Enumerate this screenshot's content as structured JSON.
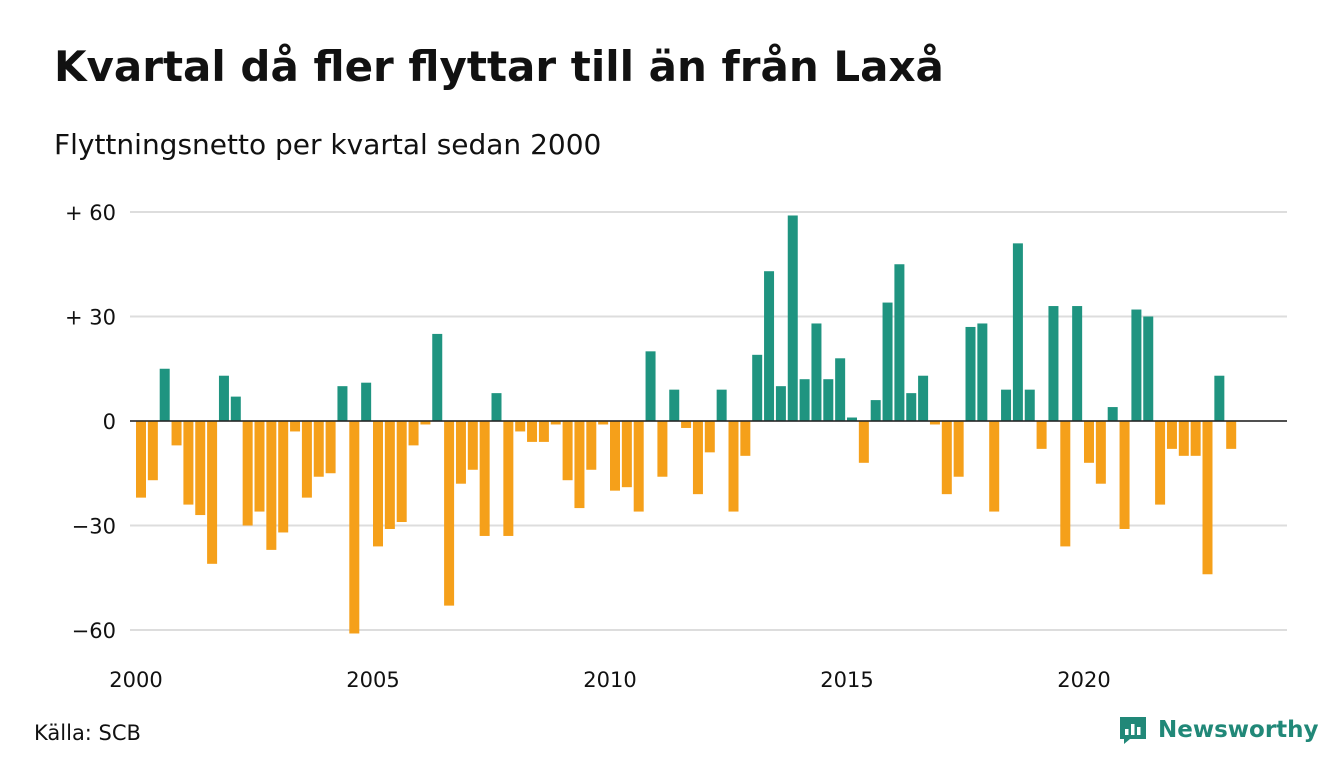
{
  "header": {
    "title": "Kvartal då fler flyttar till än från Laxå",
    "subtitle": "Flyttningsnetto per kvartal sedan 2000"
  },
  "footer": {
    "source": "Källa: SCB",
    "brand": "Newsworthy"
  },
  "colors": {
    "positive": "#1f9480",
    "negative": "#f5a01a",
    "grid": "#dddddd",
    "brand": "#218878"
  },
  "icons": {
    "brand_logo": "newsworthy-logo-icon"
  },
  "chart_data": {
    "type": "bar",
    "start": {
      "year": 2000,
      "quarter": 1
    },
    "ylim": [
      -65,
      62
    ],
    "yticks": [
      {
        "value": 60,
        "label": "+ 60"
      },
      {
        "value": 30,
        "label": "+ 30"
      },
      {
        "value": 0,
        "label": "0"
      },
      {
        "value": -30,
        "label": "−30"
      },
      {
        "value": -60,
        "label": "−60"
      }
    ],
    "xticks": [
      {
        "value": 2000,
        "label": "2000"
      },
      {
        "value": 2005,
        "label": "2005"
      },
      {
        "value": 2010,
        "label": "2010"
      },
      {
        "value": 2015,
        "label": "2015"
      },
      {
        "value": 2020,
        "label": "2020"
      }
    ],
    "grid": true,
    "values": [
      -22,
      -17,
      15,
      -7,
      -24,
      -27,
      -41,
      13,
      7,
      -30,
      -26,
      -37,
      -32,
      -3,
      -22,
      -16,
      -15,
      10,
      -61,
      11,
      -36,
      -31,
      -29,
      -7,
      -1,
      25,
      -53,
      -18,
      -14,
      -33,
      8,
      -33,
      -3,
      -6,
      -6,
      -1,
      -17,
      -25,
      -14,
      -1,
      -20,
      -19,
      -26,
      20,
      -16,
      9,
      -2,
      -21,
      -9,
      9,
      -26,
      -10,
      19,
      43,
      10,
      59,
      12,
      28,
      12,
      18,
      1,
      -12,
      6,
      34,
      45,
      8,
      13,
      -1,
      -21,
      -16,
      27,
      28,
      -26,
      9,
      51,
      9,
      -8,
      33,
      -36,
      33,
      -12,
      -18,
      4,
      -31,
      32,
      30,
      -24,
      -8,
      -10,
      -10,
      -44,
      13,
      -8
    ]
  }
}
